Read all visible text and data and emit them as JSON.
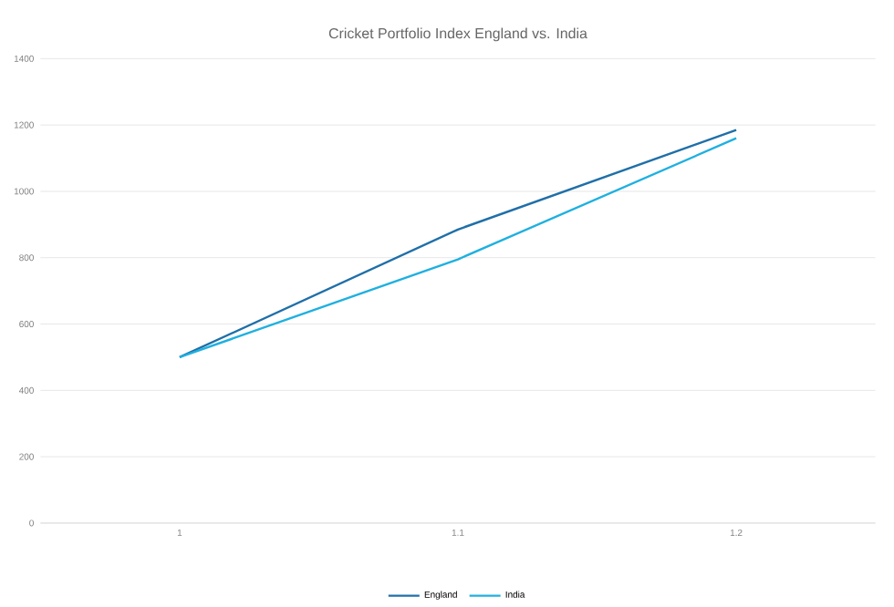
{
  "chart_data": {
    "type": "line",
    "title": "Cricket Portfolio Index England vs. India",
    "categories": [
      "1",
      "1.1",
      "1.2"
    ],
    "series": [
      {
        "name": "England",
        "color": "#1f6fa8",
        "values": [
          500,
          885,
          1185
        ]
      },
      {
        "name": "India",
        "color": "#1fb0e0",
        "values": [
          500,
          795,
          1160
        ]
      }
    ],
    "ylim": [
      0,
      1400
    ],
    "yticks": [
      0,
      200,
      400,
      600,
      800,
      1000,
      1200,
      1400
    ],
    "grid": "y",
    "legend": "bottom",
    "marker": "none",
    "line_style": "solid"
  }
}
